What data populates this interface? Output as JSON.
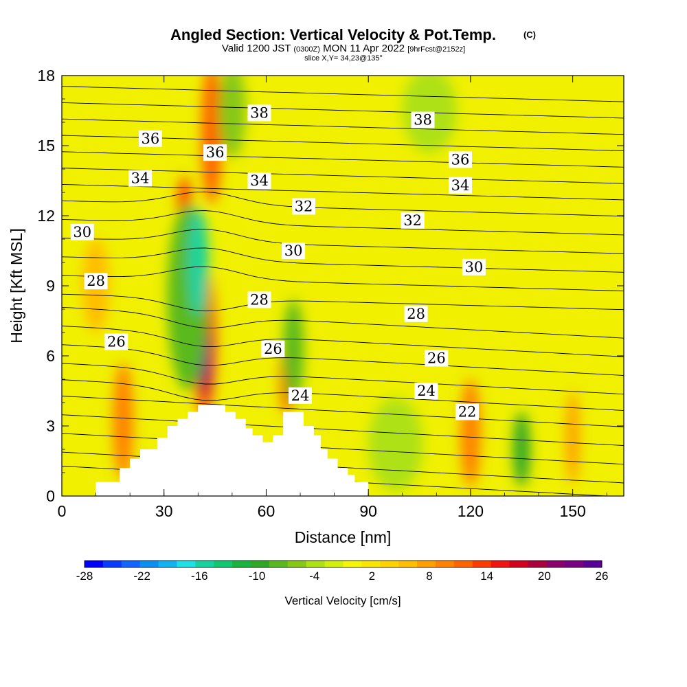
{
  "chart_data": {
    "type": "heatmap",
    "title": "Angled Section: Vertical Velocity & Pot.Temp.",
    "title_unit": "(C)",
    "subtitle_prefix": "Valid 1200 JST",
    "subtitle_zulu": "(0300Z)",
    "subtitle_date": "MON 11 Apr 2022",
    "subtitle_fcst": "[9hrFcst@2152z]",
    "slice_label": "slice X,Y= 34,23@135°",
    "xlabel": "Distance [nm]",
    "ylabel": "Height [Kft MSL]",
    "xlim": [
      0,
      165
    ],
    "ylim": [
      0,
      18
    ],
    "x_ticks": [
      0,
      30,
      60,
      90,
      120,
      150
    ],
    "y_ticks": [
      0,
      3,
      6,
      9,
      12,
      15,
      18
    ],
    "colorbar": {
      "label": "Vertical Velocity [cm/s]",
      "tick_labels": [
        "-28",
        "-22",
        "-16",
        "-10",
        "-4",
        "2",
        "8",
        "14",
        "20",
        "26"
      ],
      "colors": [
        "#0000ff",
        "#0a3cff",
        "#1266ff",
        "#0b8ff0",
        "#10b4f0",
        "#1ee1e6",
        "#16d2a0",
        "#10c870",
        "#18b43c",
        "#30a826",
        "#5ab91e",
        "#86c814",
        "#aee112",
        "#d2f00a",
        "#f5f50a",
        "#fae600",
        "#ffd200",
        "#ffbe00",
        "#ffa000",
        "#ff8200",
        "#ff6400",
        "#ff3c00",
        "#f01414",
        "#d2001e",
        "#aa003c",
        "#8c006e",
        "#780082",
        "#5a0096"
      ]
    },
    "contour_labels": [
      {
        "text": "38",
        "x": 58,
        "y": 16.4
      },
      {
        "text": "38",
        "x": 106,
        "y": 16.1
      },
      {
        "text": "36",
        "x": 26,
        "y": 15.3
      },
      {
        "text": "36",
        "x": 45,
        "y": 14.7
      },
      {
        "text": "36",
        "x": 117,
        "y": 14.4
      },
      {
        "text": "34",
        "x": 23,
        "y": 13.6
      },
      {
        "text": "34",
        "x": 58,
        "y": 13.5
      },
      {
        "text": "34",
        "x": 117,
        "y": 13.3
      },
      {
        "text": "32",
        "x": 71,
        "y": 12.4
      },
      {
        "text": "32",
        "x": 103,
        "y": 11.8
      },
      {
        "text": "30",
        "x": 6,
        "y": 11.3
      },
      {
        "text": "30",
        "x": 68,
        "y": 10.5
      },
      {
        "text": "30",
        "x": 121,
        "y": 9.8
      },
      {
        "text": "28",
        "x": 10,
        "y": 9.2
      },
      {
        "text": "28",
        "x": 58,
        "y": 8.4
      },
      {
        "text": "28",
        "x": 104,
        "y": 7.8
      },
      {
        "text": "26",
        "x": 16,
        "y": 6.6
      },
      {
        "text": "26",
        "x": 62,
        "y": 6.3
      },
      {
        "text": "26",
        "x": 110,
        "y": 5.9
      },
      {
        "text": "24",
        "x": 70,
        "y": 4.3
      },
      {
        "text": "24",
        "x": 107,
        "y": 4.5
      },
      {
        "text": "22",
        "x": 119,
        "y": 3.6
      }
    ],
    "velocity_cells": [
      {
        "x": 42,
        "y": 6.5,
        "rx": 3.5,
        "ry": 3.2,
        "v": 12
      },
      {
        "x": 42,
        "y": 6.3,
        "rx": 2,
        "ry": 2.2,
        "v": 20
      },
      {
        "x": 42,
        "y": 6.1,
        "rx": 1,
        "ry": 1.3,
        "v": 26
      },
      {
        "x": 44,
        "y": 15.5,
        "rx": 3,
        "ry": 3,
        "v": 12
      },
      {
        "x": 36,
        "y": 12.3,
        "rx": 2,
        "ry": 1.4,
        "v": 14
      },
      {
        "x": 37,
        "y": 8.5,
        "rx": 6,
        "ry": 4,
        "v": -8
      },
      {
        "x": 40,
        "y": 10,
        "rx": 3,
        "ry": 2.3,
        "v": -16
      },
      {
        "x": 66,
        "y": 5,
        "rx": 2,
        "ry": 1.5,
        "v": 12
      },
      {
        "x": 68,
        "y": 6.2,
        "rx": 3,
        "ry": 2.2,
        "v": -7
      },
      {
        "x": 18,
        "y": 3.2,
        "rx": 3,
        "ry": 2.5,
        "v": 11
      },
      {
        "x": 120,
        "y": 2.7,
        "rx": 3,
        "ry": 2.3,
        "v": 11
      },
      {
        "x": 135,
        "y": 2,
        "rx": 2.5,
        "ry": 1.6,
        "v": -9
      },
      {
        "x": 10,
        "y": 9,
        "rx": 4,
        "ry": 2,
        "v": 7
      },
      {
        "x": 150,
        "y": 2.5,
        "rx": 2,
        "ry": 2,
        "v": 8
      },
      {
        "x": 98,
        "y": 2.2,
        "rx": 8,
        "ry": 2,
        "v": -4
      },
      {
        "x": 108,
        "y": 16.5,
        "rx": 8,
        "ry": 1.8,
        "v": -3
      },
      {
        "x": 50,
        "y": 16.5,
        "rx": 4,
        "ry": 2,
        "v": -5
      }
    ],
    "terrain": [
      [
        10,
        0.6
      ],
      [
        17,
        0.6
      ],
      [
        17,
        1.2
      ],
      [
        20,
        1.2
      ],
      [
        20,
        1.6
      ],
      [
        23,
        1.6
      ],
      [
        23,
        2.0
      ],
      [
        28,
        2.0
      ],
      [
        28,
        2.5
      ],
      [
        31,
        2.5
      ],
      [
        31,
        3.0
      ],
      [
        34,
        3.0
      ],
      [
        34,
        3.3
      ],
      [
        37,
        3.3
      ],
      [
        37,
        3.6
      ],
      [
        40,
        3.6
      ],
      [
        40,
        3.9
      ],
      [
        48,
        3.9
      ],
      [
        48,
        3.6
      ],
      [
        51,
        3.6
      ],
      [
        51,
        3.3
      ],
      [
        54,
        3.3
      ],
      [
        54,
        2.9
      ],
      [
        56,
        2.9
      ],
      [
        56,
        2.6
      ],
      [
        59,
        2.6
      ],
      [
        59,
        2.3
      ],
      [
        62,
        2.3
      ],
      [
        62,
        2.6
      ],
      [
        65,
        2.6
      ],
      [
        65,
        3.6
      ],
      [
        71,
        3.6
      ],
      [
        71,
        3.0
      ],
      [
        74,
        3.0
      ],
      [
        74,
        2.6
      ],
      [
        76,
        2.6
      ],
      [
        76,
        2.0
      ],
      [
        78,
        2.0
      ],
      [
        78,
        1.6
      ],
      [
        81,
        1.6
      ],
      [
        81,
        1.2
      ],
      [
        84,
        1.2
      ],
      [
        84,
        0.9
      ],
      [
        86,
        0.9
      ],
      [
        86,
        0.6
      ],
      [
        90,
        0.6
      ]
    ]
  }
}
